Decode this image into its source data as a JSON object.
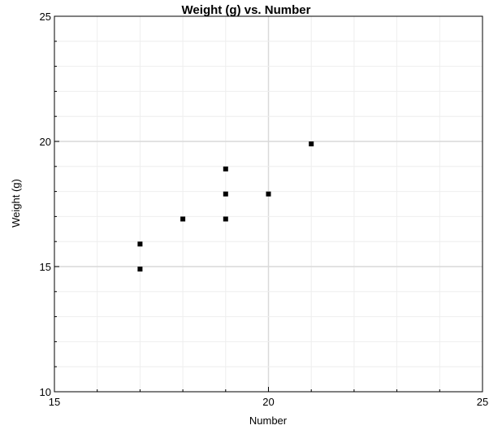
{
  "chart_data": {
    "type": "scatter",
    "title": "Weight (g) vs. Number",
    "xlabel": "Number",
    "ylabel": "Weight (g)",
    "xlim": [
      15,
      25
    ],
    "ylim": [
      10,
      25
    ],
    "xticks": [
      15,
      20,
      25
    ],
    "yticks": [
      10,
      15,
      20,
      25
    ],
    "xtick_labels": [
      "15",
      "20",
      "25"
    ],
    "ytick_labels": [
      "10",
      "15",
      "20",
      "25"
    ],
    "grid": true,
    "legend": "none",
    "colors": {
      "marker": "#000000",
      "grid_minor": "#eeeeee",
      "grid_major": "#d9d9d9",
      "axis": "#000000"
    },
    "series": [
      {
        "points": [
          {
            "x": 17,
            "y": 14.9
          },
          {
            "x": 17,
            "y": 15.9
          },
          {
            "x": 18,
            "y": 16.9
          },
          {
            "x": 19,
            "y": 16.9
          },
          {
            "x": 19,
            "y": 17.9
          },
          {
            "x": 19,
            "y": 18.9
          },
          {
            "x": 20,
            "y": 17.9
          },
          {
            "x": 21,
            "y": 19.9
          }
        ]
      }
    ]
  }
}
